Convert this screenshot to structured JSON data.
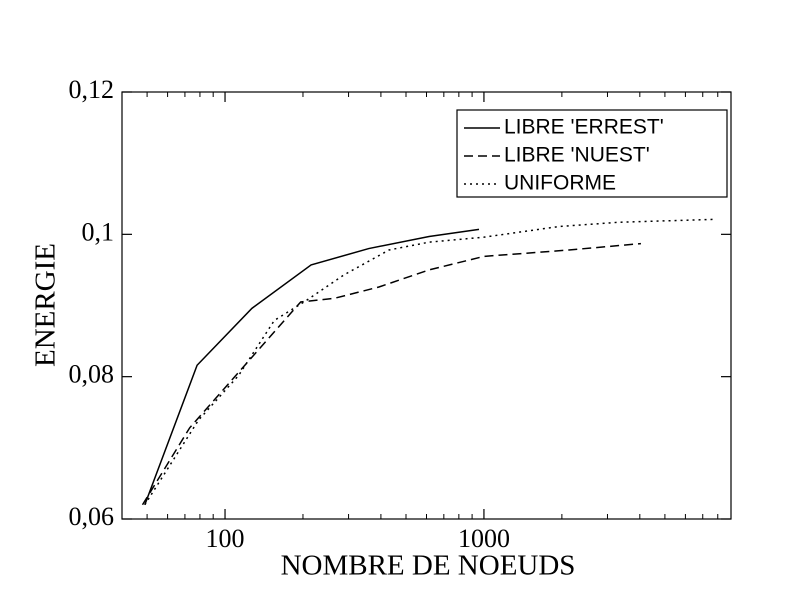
{
  "chart_data": {
    "type": "line",
    "xlabel": "NOMBRE DE NOEUDS",
    "ylabel": "ENERGIE",
    "xscale": "log",
    "xlim": [
      40,
      9000
    ],
    "ylim": [
      0.06,
      0.12
    ],
    "xticks": [
      100,
      1000
    ],
    "xminorticks": [
      50,
      60,
      70,
      80,
      90,
      200,
      300,
      400,
      500,
      600,
      700,
      800,
      900,
      2000,
      3000,
      4000,
      5000,
      6000,
      7000,
      8000,
      9000
    ],
    "yticks": [
      {
        "value": 0.06,
        "label": "0,06"
      },
      {
        "value": 0.08,
        "label": "0,08"
      },
      {
        "value": 0.1,
        "label": "0,1"
      },
      {
        "value": 0.12,
        "label": "0,12"
      }
    ],
    "legend": "upper right",
    "series": [
      {
        "name": "LIBRE 'ERREST'",
        "color": "#000000",
        "dash": "solid",
        "x": [
          49,
          78,
          127,
          215,
          359,
          614,
          957
        ],
        "values": [
          0.062,
          0.0816,
          0.0896,
          0.0957,
          0.098,
          0.0997,
          0.1007
        ]
      },
      {
        "name": "LIBRE 'NUEST'",
        "color": "#000000",
        "dash": "dashed",
        "x": [
          48,
          73,
          124,
          196,
          264,
          393,
          614,
          1000,
          2130,
          4040
        ],
        "values": [
          0.062,
          0.0728,
          0.0823,
          0.0905,
          0.091,
          0.0926,
          0.095,
          0.0969,
          0.0978,
          0.0987
        ]
      },
      {
        "name": "UNIFORME",
        "color": "#000000",
        "dash": "dotted",
        "x": [
          49,
          79,
          113,
          155,
          202,
          288,
          430,
          614,
          1000,
          1950,
          3330,
          7730
        ],
        "values": [
          0.062,
          0.0739,
          0.0802,
          0.0879,
          0.0905,
          0.0943,
          0.0978,
          0.0989,
          0.0996,
          0.1011,
          0.1017,
          0.1021
        ]
      }
    ]
  }
}
